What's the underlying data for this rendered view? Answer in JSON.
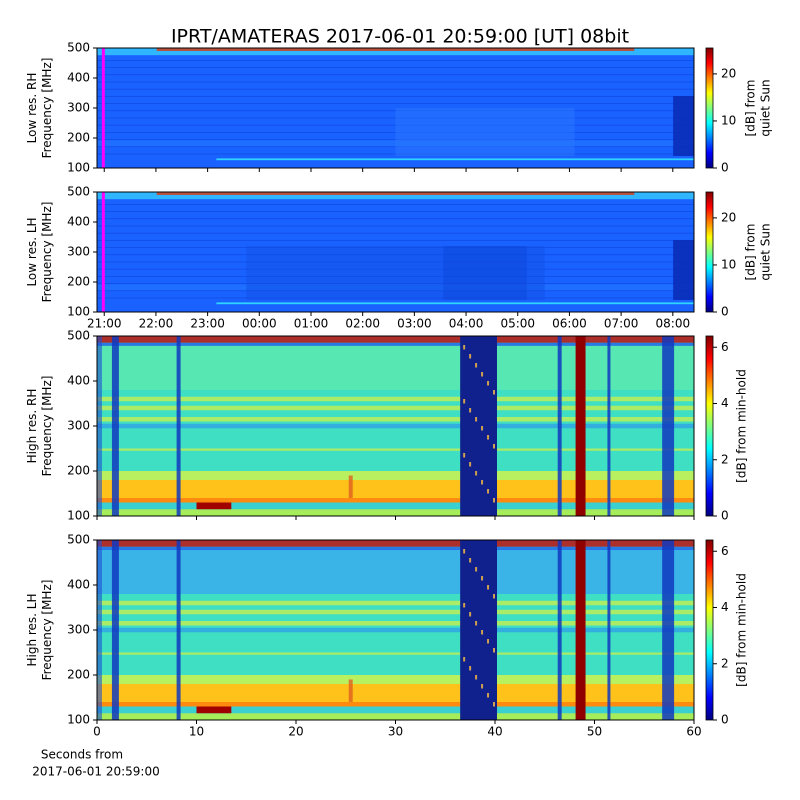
{
  "chart_data": [
    {
      "type": "heatmap",
      "title": "IPRT/AMATERAS 2017-06-01 20:59:00 [UT]   08bit",
      "ylabel": [
        "Low res. RH",
        "Frequency [MHz]"
      ],
      "ylim": [
        100,
        500
      ],
      "yticks": [
        100,
        200,
        300,
        400,
        500
      ],
      "xlim": [
        20.86,
        32.41
      ],
      "xticks": [
        21,
        22,
        23,
        24,
        25,
        26,
        27,
        28,
        29,
        30,
        31,
        32
      ],
      "show_xtick_labels": false,
      "vline": {
        "x": 20.983,
        "color": "#ff00ff"
      },
      "colorbar": {
        "label": [
          "[dB] from",
          "quiet Sun"
        ],
        "clim": [
          0,
          25.5
        ],
        "ticks": [
          0,
          10,
          20
        ],
        "colormap": "jet"
      }
    },
    {
      "type": "heatmap",
      "ylabel": [
        "Low res. LH",
        "Frequency [MHz]"
      ],
      "ylim": [
        100,
        500
      ],
      "yticks": [
        100,
        200,
        300,
        400,
        500
      ],
      "xlim": [
        20.86,
        32.41
      ],
      "xticks": [
        {
          "value": 21,
          "label": "21:00"
        },
        {
          "value": 22,
          "label": "22:00"
        },
        {
          "value": 23,
          "label": "23:00"
        },
        {
          "value": 24,
          "label": "00:00"
        },
        {
          "value": 25,
          "label": "01:00"
        },
        {
          "value": 26,
          "label": "02:00"
        },
        {
          "value": 27,
          "label": "03:00"
        },
        {
          "value": 28,
          "label": "04:00"
        },
        {
          "value": 29,
          "label": "05:00"
        },
        {
          "value": 30,
          "label": "06:00"
        },
        {
          "value": 31,
          "label": "07:00"
        },
        {
          "value": 32,
          "label": "08:00"
        }
      ],
      "show_xtick_labels": true,
      "vline": {
        "x": 20.983,
        "color": "#ff00ff"
      },
      "colorbar": {
        "label": [
          "[dB] from",
          "quiet Sun"
        ],
        "clim": [
          0,
          25.5
        ],
        "ticks": [
          0,
          10,
          20
        ],
        "colormap": "jet"
      }
    },
    {
      "type": "heatmap",
      "ylabel": [
        "High res. RH",
        "Frequency [MHz]"
      ],
      "ylim": [
        100,
        500
      ],
      "yticks": [
        100,
        200,
        300,
        400,
        500
      ],
      "xlim": [
        0,
        60
      ],
      "xticks": [
        0,
        10,
        20,
        30,
        40,
        50,
        60
      ],
      "show_xtick_labels": false,
      "colorbar": {
        "label": [
          "[dB] from min-hold"
        ],
        "clim": [
          0,
          6.4
        ],
        "ticks": [
          0,
          2,
          4,
          6
        ],
        "colormap": "jet"
      }
    },
    {
      "type": "heatmap",
      "ylabel": [
        "High res. LH",
        "Frequency [MHz]"
      ],
      "ylim": [
        100,
        500
      ],
      "yticks": [
        100,
        200,
        300,
        400,
        500
      ],
      "xlim": [
        0,
        60
      ],
      "xticks": [
        0,
        10,
        20,
        30,
        40,
        50,
        60
      ],
      "show_xtick_labels": true,
      "xlabel": [
        "Seconds from",
        "2017-06-01 20:59:00"
      ],
      "colorbar": {
        "label": [
          "[dB] from min-hold"
        ],
        "clim": [
          0,
          6.4
        ],
        "ticks": [
          0,
          2,
          4,
          6
        ],
        "colormap": "jet"
      }
    }
  ]
}
